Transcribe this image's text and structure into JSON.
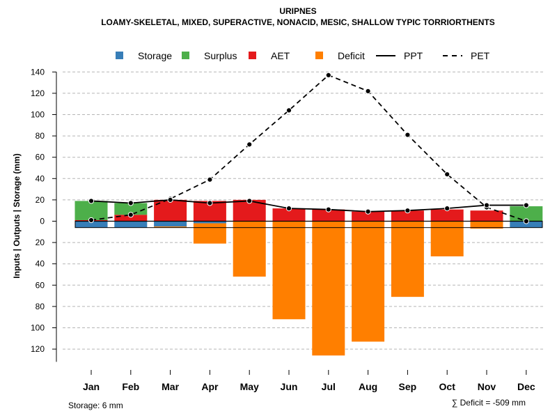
{
  "chart_data": {
    "type": "bar",
    "title": "URIPNES",
    "subtitle": "LOAMY-SKELETAL, MIXED, SUPERACTIVE, NONACID, MESIC, SHALLOW TYPIC TORRIORTHENTS",
    "ylabel": "Inputs | Outputs | Storage    (mm)",
    "ylim": [
      -130,
      140
    ],
    "yticks": [
      140,
      120,
      100,
      80,
      60,
      40,
      20,
      0,
      -20,
      -40,
      -60,
      -80,
      -100,
      -120
    ],
    "ytick_labels": [
      "140",
      "120",
      "100",
      "80",
      "60",
      "40",
      "20",
      "0",
      "20",
      "40",
      "60",
      "80",
      "100",
      "120"
    ],
    "grid": true,
    "legend_position": "top",
    "categories": [
      "Jan",
      "Feb",
      "Mar",
      "Apr",
      "May",
      "Jun",
      "Jul",
      "Aug",
      "Sep",
      "Oct",
      "Nov",
      "Dec"
    ],
    "series": [
      {
        "name": "Storage",
        "color": "#377eb8",
        "values": [
          -6,
          -6,
          -5,
          -2,
          0,
          0,
          0,
          0,
          0,
          0,
          0,
          -6
        ]
      },
      {
        "name": "Surplus",
        "color": "#4daf4a",
        "values": [
          18,
          11,
          0,
          0,
          0,
          0,
          0,
          0,
          0,
          0,
          0,
          14
        ]
      },
      {
        "name": "AET",
        "color": "#e41a1c",
        "values": [
          1,
          6,
          20,
          19,
          20,
          12,
          11,
          9,
          10,
          11,
          10,
          0
        ]
      },
      {
        "name": "Deficit",
        "color": "#ff7f00",
        "values": [
          0,
          0,
          -1,
          -19,
          -52,
          -92,
          -126,
          -113,
          -71,
          -33,
          -7,
          0
        ]
      },
      {
        "name": "PPT",
        "color": "#000000",
        "style": "solid",
        "values": [
          19,
          17,
          20,
          17,
          19,
          12,
          11,
          9,
          10,
          12,
          15,
          15
        ]
      },
      {
        "name": "PET",
        "color": "#000000",
        "style": "dashed",
        "values": [
          1,
          6,
          21,
          39,
          72,
          104,
          137,
          122,
          81,
          44,
          13,
          0
        ]
      }
    ]
  },
  "footer": {
    "storage_note": "Storage: 6 mm",
    "deficit_note": "∑ Deficit = -509 mm"
  }
}
